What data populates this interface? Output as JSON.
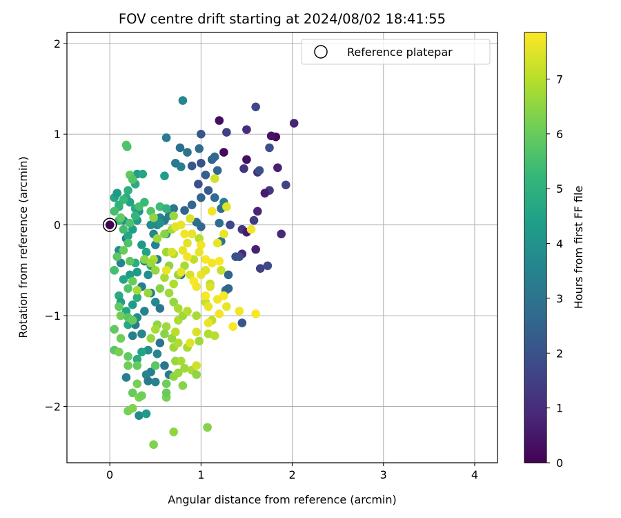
{
  "chart_data": {
    "type": "scatter",
    "title": "FOV centre drift starting at 2024/08/02 18:41:55",
    "xlabel": "Angular distance from reference (arcmin)",
    "ylabel": "Rotation from reference (arcmin)",
    "xlim": [
      -0.47,
      4.25
    ],
    "ylim": [
      -2.62,
      2.12
    ],
    "xticks": [
      0,
      1,
      2,
      3,
      4
    ],
    "xtick_labels": [
      "0",
      "1",
      "2",
      "3",
      "4"
    ],
    "yticks": [
      -2,
      -1,
      0,
      1,
      2
    ],
    "ytick_labels": [
      "−2",
      "−1",
      "0",
      "1",
      "2"
    ],
    "grid": true,
    "legend": {
      "position": "top-right",
      "entries": [
        {
          "label": "Reference platepar",
          "marker": "open-circle"
        }
      ]
    },
    "reference_point": {
      "x": 0,
      "y": 0
    },
    "colorbar": {
      "label": "Hours from first FF file",
      "min": 0,
      "max": 7.85,
      "colormap": "viridis",
      "ticks": [
        0,
        1,
        2,
        3,
        4,
        5,
        6,
        7
      ],
      "tick_labels": [
        "0",
        "1",
        "2",
        "3",
        "4",
        "5",
        "6",
        "7"
      ],
      "colors": [
        "#440154",
        "#482878",
        "#3e4989",
        "#31688e",
        "#26828e",
        "#1f9e89",
        "#35b779",
        "#6ece58",
        "#b5de2b",
        "#fde725"
      ]
    },
    "points": [
      [
        1.2,
        1.15,
        0.3
      ],
      [
        1.6,
        1.3,
        1.7
      ],
      [
        1.5,
        1.05,
        1.0
      ],
      [
        1.82,
        0.97,
        0.2
      ],
      [
        1.77,
        0.98,
        0.4
      ],
      [
        2.02,
        1.12,
        0.8
      ],
      [
        1.28,
        1.02,
        1.5
      ],
      [
        1.75,
        0.85,
        1.9
      ],
      [
        1.84,
        0.63,
        0.7
      ],
      [
        1.88,
        -0.1,
        0.9
      ],
      [
        1.93,
        0.44,
        1.6
      ],
      [
        1.75,
        0.38,
        1.3
      ],
      [
        1.7,
        0.35,
        0.6
      ],
      [
        1.62,
        0.58,
        1.1
      ],
      [
        1.64,
        0.6,
        1.9
      ],
      [
        1.47,
        0.62,
        1.2
      ],
      [
        1.5,
        0.72,
        0.3
      ],
      [
        1.62,
        0.15,
        0.8
      ],
      [
        1.58,
        0.05,
        1.4
      ],
      [
        1.6,
        -0.27,
        0.7
      ],
      [
        1.45,
        -0.32,
        0.9
      ],
      [
        1.45,
        -0.05,
        1.3
      ],
      [
        1.32,
        0.0,
        1.7
      ],
      [
        1.42,
        -0.35,
        1.8
      ],
      [
        1.5,
        -0.08,
        0.6
      ],
      [
        1.25,
        0.8,
        0.2
      ],
      [
        1.12,
        0.72,
        2.5
      ],
      [
        1.15,
        0.75,
        2.7
      ],
      [
        1.18,
        0.6,
        2.6
      ],
      [
        1.0,
        1.0,
        2.1
      ],
      [
        0.98,
        0.84,
        2.8
      ],
      [
        0.8,
        1.37,
        3.6
      ],
      [
        0.77,
        0.85,
        2.9
      ],
      [
        0.85,
        0.8,
        3.0
      ],
      [
        0.62,
        0.96,
        3.3
      ],
      [
        0.72,
        0.68,
        3.2
      ],
      [
        0.78,
        0.64,
        3.4
      ],
      [
        0.9,
        0.65,
        2.2
      ],
      [
        1.0,
        0.68,
        2.0
      ],
      [
        1.05,
        0.55,
        2.4
      ],
      [
        0.97,
        0.45,
        1.9
      ],
      [
        1.0,
        0.3,
        2.5
      ],
      [
        1.08,
        0.38,
        2.2
      ],
      [
        1.15,
        0.3,
        2.7
      ],
      [
        1.22,
        0.18,
        2.9
      ],
      [
        1.25,
        0.25,
        3.3
      ],
      [
        0.9,
        0.22,
        2.6
      ],
      [
        0.82,
        0.16,
        2.5
      ],
      [
        0.7,
        0.18,
        3.1
      ],
      [
        0.65,
        0.1,
        3.4
      ],
      [
        0.55,
        0.08,
        3.7
      ],
      [
        0.6,
        0.05,
        3.2
      ],
      [
        0.52,
        0.0,
        3.6
      ],
      [
        0.95,
        0.03,
        2.8
      ],
      [
        1.0,
        -0.02,
        2.7
      ],
      [
        1.2,
        0.02,
        2.9
      ],
      [
        1.22,
        -0.18,
        3.0
      ],
      [
        1.3,
        -0.55,
        2.5
      ],
      [
        1.27,
        -0.72,
        2.8
      ],
      [
        1.3,
        -0.7,
        2.6
      ],
      [
        1.45,
        -1.08,
        2.1
      ],
      [
        1.38,
        -0.35,
        2.0
      ],
      [
        1.65,
        -0.48,
        1.5
      ],
      [
        1.73,
        -0.45,
        1.8
      ],
      [
        0.78,
        -0.55,
        2.9
      ],
      [
        0.6,
        0.54,
        4.4
      ],
      [
        0.55,
        0.02,
        4.0
      ],
      [
        0.45,
        0.0,
        3.8
      ],
      [
        0.48,
        -0.1,
        3.6
      ],
      [
        0.62,
        -0.1,
        3.9
      ],
      [
        0.5,
        -0.22,
        3.5
      ],
      [
        0.52,
        -0.38,
        3.3
      ],
      [
        0.38,
        -0.4,
        3.6
      ],
      [
        0.42,
        -0.55,
        3.9
      ],
      [
        0.3,
        -0.52,
        4.2
      ],
      [
        0.35,
        -0.68,
        3.4
      ],
      [
        0.45,
        -0.75,
        3.2
      ],
      [
        0.5,
        -0.85,
        3.7
      ],
      [
        0.55,
        -0.92,
        3.1
      ],
      [
        0.38,
        -0.95,
        3.5
      ],
      [
        0.3,
        -1.02,
        3.8
      ],
      [
        0.28,
        -1.1,
        3.3
      ],
      [
        0.35,
        -1.2,
        3.6
      ],
      [
        0.25,
        -1.22,
        3.4
      ],
      [
        0.42,
        -1.38,
        3.9
      ],
      [
        0.52,
        -1.42,
        3.6
      ],
      [
        0.55,
        -1.3,
        3.0
      ],
      [
        0.6,
        -1.55,
        3.1
      ],
      [
        0.65,
        -1.65,
        3.3
      ],
      [
        0.45,
        -1.62,
        3.4
      ],
      [
        0.4,
        -1.65,
        3.6
      ],
      [
        0.42,
        -1.72,
        3.2
      ],
      [
        0.5,
        -1.73,
        3.5
      ],
      [
        0.18,
        -1.68,
        3.4
      ],
      [
        0.32,
        -2.1,
        3.7
      ],
      [
        0.4,
        -2.08,
        4.3
      ],
      [
        0.18,
        -0.15,
        3.2
      ],
      [
        0.12,
        -0.42,
        3.5
      ],
      [
        0.1,
        -0.28,
        3.8
      ],
      [
        0.15,
        0.05,
        4.1
      ],
      [
        0.05,
        0.3,
        4.6
      ],
      [
        0.1,
        0.2,
        4.9
      ],
      [
        0.08,
        0.35,
        4.2
      ],
      [
        0.18,
        0.3,
        4.7
      ],
      [
        0.22,
        0.25,
        4.5
      ],
      [
        0.28,
        0.18,
        4.8
      ],
      [
        0.3,
        0.05,
        4.3
      ],
      [
        0.32,
        0.15,
        4.0
      ],
      [
        0.25,
        -0.05,
        4.4
      ],
      [
        0.2,
        -0.12,
        4.6
      ],
      [
        0.35,
        -0.22,
        4.2
      ],
      [
        0.4,
        -0.3,
        4.5
      ],
      [
        0.45,
        -0.45,
        4.7
      ],
      [
        0.28,
        -0.42,
        4.9
      ],
      [
        0.22,
        -0.55,
        4.3
      ],
      [
        0.15,
        -0.6,
        4.6
      ],
      [
        0.1,
        -0.78,
        4.8
      ],
      [
        0.12,
        -0.85,
        4.4
      ],
      [
        0.18,
        -0.95,
        4.6
      ],
      [
        0.25,
        -0.88,
        4.3
      ],
      [
        0.3,
        -0.8,
        4.9
      ],
      [
        0.2,
        -1.1,
        4.7
      ],
      [
        0.35,
        -1.4,
        4.5
      ],
      [
        0.3,
        -1.48,
        4.8
      ],
      [
        0.3,
        0.56,
        4.4
      ],
      [
        0.36,
        0.56,
        4.6
      ],
      [
        0.28,
        0.45,
        4.8
      ],
      [
        0.2,
        0.38,
        5.0
      ],
      [
        0.15,
        0.28,
        5.3
      ],
      [
        0.1,
        0.22,
        5.1
      ],
      [
        0.05,
        0.15,
        5.5
      ],
      [
        0.1,
        0.05,
        5.2
      ],
      [
        0.15,
        -0.05,
        5.4
      ],
      [
        0.22,
        0.02,
        5.6
      ],
      [
        0.28,
        0.1,
        5.2
      ],
      [
        0.32,
        0.2,
        5.5
      ],
      [
        0.38,
        0.25,
        5.3
      ],
      [
        0.55,
        0.2,
        5.4
      ],
      [
        0.62,
        0.18,
        5.1
      ],
      [
        0.45,
        0.15,
        5.7
      ],
      [
        0.18,
        0.88,
        5.8
      ],
      [
        0.19,
        0.86,
        5.6
      ],
      [
        0.22,
        0.55,
        5.9
      ],
      [
        0.25,
        0.5,
        5.7
      ],
      [
        0.12,
        0.08,
        5.9
      ],
      [
        0.05,
        -0.5,
        5.5
      ],
      [
        0.08,
        -0.35,
        5.8
      ],
      [
        0.2,
        -0.2,
        5.6
      ],
      [
        0.15,
        -0.28,
        6.0
      ],
      [
        0.22,
        -0.4,
        5.8
      ],
      [
        0.25,
        -0.62,
        6.0
      ],
      [
        0.2,
        -0.7,
        5.7
      ],
      [
        0.1,
        -0.9,
        5.9
      ],
      [
        0.12,
        -1.0,
        6.1
      ],
      [
        0.2,
        -1.02,
        5.8
      ],
      [
        0.25,
        -1.05,
        6.0
      ],
      [
        0.05,
        -1.15,
        5.9
      ],
      [
        0.12,
        -1.25,
        6.1
      ],
      [
        0.05,
        -1.38,
        5.8
      ],
      [
        0.1,
        -1.4,
        6.2
      ],
      [
        0.2,
        -1.45,
        5.9
      ],
      [
        0.3,
        -1.55,
        6.0
      ],
      [
        0.2,
        -1.55,
        6.1
      ],
      [
        0.3,
        -1.75,
        6.2
      ],
      [
        0.25,
        -1.85,
        6.0
      ],
      [
        0.32,
        -1.9,
        6.3
      ],
      [
        0.35,
        -1.88,
        6.1
      ],
      [
        0.2,
        -2.05,
        6.2
      ],
      [
        0.25,
        -2.02,
        6.3
      ],
      [
        0.5,
        -1.55,
        5.8
      ],
      [
        0.62,
        -1.75,
        6.1
      ],
      [
        0.62,
        -1.9,
        6.2
      ],
      [
        0.62,
        -1.85,
        6.0
      ],
      [
        0.48,
        -2.42,
        6.3
      ],
      [
        0.7,
        -2.28,
        6.5
      ],
      [
        1.07,
        -2.23,
        6.4
      ],
      [
        0.7,
        -1.67,
        6.5
      ],
      [
        0.75,
        -1.63,
        6.6
      ],
      [
        0.8,
        -1.77,
        6.4
      ],
      [
        0.82,
        -1.58,
        6.7
      ],
      [
        0.9,
        -1.6,
        6.8
      ],
      [
        0.95,
        -1.65,
        6.5
      ],
      [
        0.72,
        -1.5,
        6.6
      ],
      [
        0.78,
        -1.5,
        6.8
      ],
      [
        0.7,
        -1.35,
        6.7
      ],
      [
        0.75,
        -1.3,
        6.9
      ],
      [
        0.68,
        -1.25,
        6.6
      ],
      [
        0.85,
        -1.35,
        6.8
      ],
      [
        0.72,
        -1.18,
        7.0
      ],
      [
        0.62,
        -1.12,
        6.7
      ],
      [
        0.52,
        -1.1,
        6.5
      ],
      [
        0.5,
        -1.15,
        6.8
      ],
      [
        0.45,
        -1.25,
        6.6
      ],
      [
        0.6,
        -1.2,
        6.4
      ],
      [
        0.75,
        -1.05,
        6.9
      ],
      [
        0.8,
        -1.0,
        6.7
      ],
      [
        0.85,
        -0.95,
        7.0
      ],
      [
        0.75,
        -0.92,
        6.8
      ],
      [
        0.7,
        -0.85,
        6.6
      ],
      [
        0.65,
        -0.75,
        6.7
      ],
      [
        0.7,
        -0.65,
        6.9
      ],
      [
        0.75,
        -0.55,
        6.6
      ],
      [
        0.82,
        -0.45,
        6.8
      ],
      [
        0.65,
        -0.45,
        6.5
      ],
      [
        0.62,
        -0.3,
        6.7
      ],
      [
        0.7,
        -0.32,
        6.9
      ],
      [
        0.6,
        -0.1,
        6.4
      ],
      [
        0.7,
        0.1,
        6.6
      ],
      [
        0.68,
        -0.05,
        6.8
      ],
      [
        0.48,
        0.08,
        6.5
      ],
      [
        0.52,
        -0.15,
        6.7
      ],
      [
        0.48,
        -0.38,
        6.9
      ],
      [
        0.38,
        -0.38,
        6.5
      ],
      [
        0.45,
        -0.42,
        6.7
      ],
      [
        0.5,
        -0.5,
        6.6
      ],
      [
        0.6,
        -0.58,
        6.8
      ],
      [
        0.55,
        -0.7,
        6.4
      ],
      [
        0.42,
        -0.75,
        6.6
      ],
      [
        0.3,
        -0.72,
        6.8
      ],
      [
        0.98,
        -0.15,
        7.0
      ],
      [
        0.92,
        -0.38,
        7.1
      ],
      [
        0.95,
        -1.0,
        6.8
      ],
      [
        0.98,
        -1.28,
        6.7
      ],
      [
        1.08,
        -1.2,
        6.9
      ],
      [
        1.12,
        -1.05,
        7.1
      ],
      [
        1.15,
        -1.22,
        7.0
      ],
      [
        1.05,
        -0.85,
        7.2
      ],
      [
        1.1,
        -0.65,
        7.1
      ],
      [
        1.22,
        -0.5,
        7.2
      ],
      [
        1.15,
        0.51,
        7.3
      ],
      [
        0.88,
        0.07,
        7.4
      ],
      [
        0.72,
        -0.02,
        7.5
      ],
      [
        0.78,
        0.0,
        7.6
      ],
      [
        0.82,
        -0.1,
        7.7
      ],
      [
        0.85,
        -0.2,
        7.5
      ],
      [
        0.8,
        -0.28,
        7.6
      ],
      [
        0.85,
        -0.35,
        7.7
      ],
      [
        0.78,
        -0.52,
        7.6
      ],
      [
        0.88,
        -0.55,
        7.4
      ],
      [
        0.92,
        -0.62,
        7.8
      ],
      [
        0.95,
        -0.68,
        7.7
      ],
      [
        1.0,
        -0.55,
        7.6
      ],
      [
        1.05,
        -0.5,
        7.5
      ],
      [
        1.0,
        -0.22,
        7.7
      ],
      [
        0.98,
        -0.3,
        7.6
      ],
      [
        1.05,
        -0.38,
        7.8
      ],
      [
        1.12,
        -0.42,
        7.7
      ],
      [
        1.05,
        -0.78,
        7.8
      ],
      [
        1.08,
        -0.9,
        7.6
      ],
      [
        1.18,
        -0.82,
        7.7
      ],
      [
        1.25,
        -0.78,
        7.8
      ],
      [
        1.2,
        -0.98,
        7.7
      ],
      [
        1.28,
        -0.9,
        7.6
      ],
      [
        1.35,
        -1.12,
        7.8
      ],
      [
        1.42,
        -0.95,
        7.7
      ],
      [
        1.6,
        -0.98,
        7.8
      ],
      [
        1.18,
        -0.2,
        7.6
      ],
      [
        1.2,
        -0.4,
        7.8
      ],
      [
        1.12,
        0.15,
        7.7
      ],
      [
        1.25,
        -0.1,
        7.6
      ],
      [
        1.28,
        0.2,
        7.5
      ],
      [
        1.55,
        -0.05,
        7.7
      ],
      [
        1.08,
        -1.08,
        7.6
      ],
      [
        0.95,
        -1.18,
        7.4
      ],
      [
        0.95,
        -1.55,
        7.3
      ],
      [
        0.88,
        -1.3,
        7.5
      ],
      [
        0.62,
        -0.5,
        7.6
      ],
      [
        0.68,
        -0.3,
        7.4
      ],
      [
        0.9,
        -0.1,
        7.6
      ],
      [
        1.1,
        -0.68,
        7.4
      ]
    ]
  }
}
